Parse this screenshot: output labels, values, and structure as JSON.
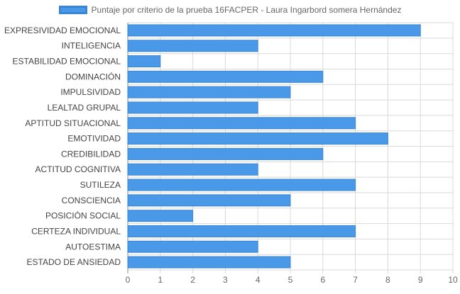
{
  "chart_data": {
    "type": "bar",
    "orientation": "horizontal",
    "categories": [
      "EXPRESIVIDAD EMOCIONAL",
      "INTELIGENCIA",
      "ESTABILIDAD EMOCIONAL",
      "DOMINACIÓN",
      "IMPULSIVIDAD",
      "LEALTAD GRUPAL",
      "APTITUD SITUACIONAL",
      "EMOTIVIDAD",
      "CREDIBILIDAD",
      "ACTITUD COGNITIVA",
      "SUTILEZA",
      "CONSCIENCIA",
      "POSICIÓN SOCIAL",
      "CERTEZA INDIVIDUAL",
      "AUTOESTIMA",
      "ESTADO DE ANSIEDAD"
    ],
    "series": [
      {
        "name": "Puntaje por criterio de la prueba 16FACPER - Laura Ingarbord somera Hernández",
        "values": [
          9,
          4,
          1,
          6,
          5,
          4,
          7,
          8,
          6,
          4,
          7,
          5,
          2,
          7,
          4,
          5
        ],
        "color": "#4a98e8",
        "border_color": "#3b86d4"
      }
    ],
    "xlim": [
      0,
      10
    ],
    "x_ticks": [
      "0",
      "1",
      "2",
      "3",
      "4",
      "5",
      "6",
      "7",
      "8",
      "9",
      "10"
    ],
    "grid": true,
    "legend_position": "top"
  },
  "colors": {
    "grid": "#d9d9d9",
    "label_text": "#444444",
    "tick_text": "#666666"
  }
}
